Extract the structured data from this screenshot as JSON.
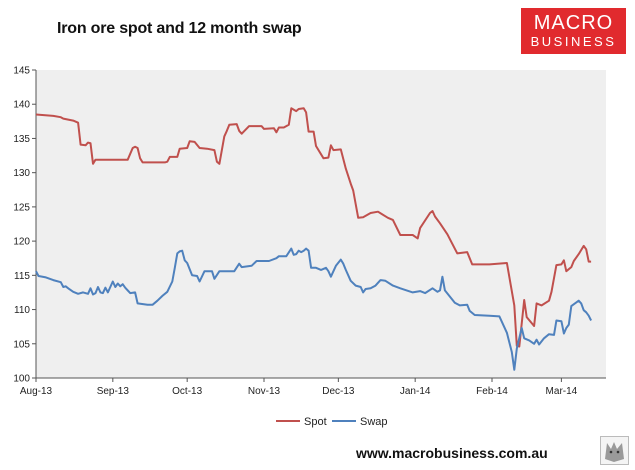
{
  "brand": {
    "logo_line1": "MACRO",
    "logo_line2": "BUSINESS",
    "website": "www.macrobusiness.com.au",
    "logo_color": "#e12a2e"
  },
  "chart_data": {
    "type": "line",
    "title": "Iron ore spot and 12 month swap",
    "xlabel": "",
    "ylabel": "",
    "ylim": [
      100,
      145
    ],
    "yticks": [
      100,
      105,
      110,
      115,
      120,
      125,
      130,
      135,
      140,
      145
    ],
    "x_tick_labels": [
      "Aug-13",
      "Sep-13",
      "Oct-13",
      "Nov-13",
      "Dec-13",
      "Jan-14",
      "Feb-14",
      "Mar-14"
    ],
    "x_tick_dates": [
      "2013-08-01",
      "2013-09-01",
      "2013-10-01",
      "2013-11-01",
      "2013-12-01",
      "2014-01-01",
      "2014-02-01",
      "2014-03-01"
    ],
    "xlim": [
      "2013-08-01",
      "2014-03-19"
    ],
    "grid": false,
    "plot_background": "#efefef",
    "legend_position": "bottom",
    "series": [
      {
        "name": "Spot",
        "color": "#c0504d",
        "points": [
          [
            "2013-08-01",
            138.5
          ],
          [
            "2013-08-08",
            138.3
          ],
          [
            "2013-08-11",
            138.1
          ],
          [
            "2013-08-12",
            137.9
          ],
          [
            "2013-08-16",
            137.6
          ],
          [
            "2013-08-18",
            137.3
          ],
          [
            "2013-08-19",
            134.1
          ],
          [
            "2013-08-21",
            134.0
          ],
          [
            "2013-08-22",
            134.4
          ],
          [
            "2013-08-23",
            134.3
          ],
          [
            "2013-08-24",
            131.3
          ],
          [
            "2013-08-25",
            131.9
          ],
          [
            "2013-08-30",
            131.9
          ],
          [
            "2013-09-05",
            131.9
          ],
          [
            "2013-09-07",
            131.9
          ],
          [
            "2013-09-09",
            133.6
          ],
          [
            "2013-09-10",
            133.8
          ],
          [
            "2013-09-11",
            133.6
          ],
          [
            "2013-09-12",
            132.1
          ],
          [
            "2013-09-13",
            131.5
          ],
          [
            "2013-09-18",
            131.5
          ],
          [
            "2013-09-22",
            131.5
          ],
          [
            "2013-09-23",
            131.6
          ],
          [
            "2013-09-24",
            132.3
          ],
          [
            "2013-09-27",
            132.3
          ],
          [
            "2013-09-28",
            133.5
          ],
          [
            "2013-10-01",
            133.6
          ],
          [
            "2013-10-02",
            134.6
          ],
          [
            "2013-10-04",
            134.5
          ],
          [
            "2013-10-06",
            133.6
          ],
          [
            "2013-10-09",
            133.5
          ],
          [
            "2013-10-12",
            133.3
          ],
          [
            "2013-10-13",
            131.6
          ],
          [
            "2013-10-14",
            131.3
          ],
          [
            "2013-10-16",
            135.3
          ],
          [
            "2013-10-17",
            136.1
          ],
          [
            "2013-10-18",
            137.0
          ],
          [
            "2013-10-21",
            137.1
          ],
          [
            "2013-10-22",
            136.1
          ],
          [
            "2013-10-23",
            135.7
          ],
          [
            "2013-10-26",
            136.8
          ],
          [
            "2013-10-28",
            136.8
          ],
          [
            "2013-10-31",
            136.8
          ],
          [
            "2013-11-01",
            136.4
          ],
          [
            "2013-11-05",
            136.5
          ],
          [
            "2013-11-06",
            135.9
          ],
          [
            "2013-11-07",
            136.6
          ],
          [
            "2013-11-09",
            136.6
          ],
          [
            "2013-11-11",
            137.0
          ],
          [
            "2013-11-12",
            139.4
          ],
          [
            "2013-11-14",
            139.0
          ],
          [
            "2013-11-15",
            139.3
          ],
          [
            "2013-11-17",
            139.4
          ],
          [
            "2013-11-18",
            138.8
          ],
          [
            "2013-11-19",
            136.0
          ],
          [
            "2013-11-21",
            136.0
          ],
          [
            "2013-11-22",
            133.9
          ],
          [
            "2013-11-25",
            132.1
          ],
          [
            "2013-11-27",
            132.2
          ],
          [
            "2013-11-28",
            134.0
          ],
          [
            "2013-11-29",
            133.3
          ],
          [
            "2013-12-02",
            133.4
          ],
          [
            "2013-12-04",
            130.6
          ],
          [
            "2013-12-06",
            128.4
          ],
          [
            "2013-12-07",
            127.4
          ],
          [
            "2013-12-09",
            123.4
          ],
          [
            "2013-12-11",
            123.5
          ],
          [
            "2013-12-14",
            124.1
          ],
          [
            "2013-12-17",
            124.3
          ],
          [
            "2013-12-21",
            123.4
          ],
          [
            "2013-12-23",
            123.1
          ],
          [
            "2013-12-26",
            120.9
          ],
          [
            "2013-12-31",
            120.9
          ],
          [
            "2014-01-02",
            120.4
          ],
          [
            "2014-01-03",
            121.9
          ],
          [
            "2014-01-07",
            124.1
          ],
          [
            "2014-01-08",
            124.4
          ],
          [
            "2014-01-09",
            123.6
          ],
          [
            "2014-01-11",
            122.6
          ],
          [
            "2014-01-14",
            121.0
          ],
          [
            "2014-01-16",
            119.6
          ],
          [
            "2014-01-18",
            118.2
          ],
          [
            "2014-01-22",
            118.4
          ],
          [
            "2014-01-24",
            116.6
          ],
          [
            "2014-01-31",
            116.6
          ],
          [
            "2014-02-07",
            116.8
          ],
          [
            "2014-02-10",
            110.6
          ],
          [
            "2014-02-11",
            104.7
          ],
          [
            "2014-02-12",
            104.6
          ],
          [
            "2014-02-14",
            111.4
          ],
          [
            "2014-02-15",
            108.9
          ],
          [
            "2014-02-18",
            107.6
          ],
          [
            "2014-02-19",
            110.9
          ],
          [
            "2014-02-21",
            110.6
          ],
          [
            "2014-02-24",
            111.3
          ],
          [
            "2014-02-25",
            112.6
          ],
          [
            "2014-02-27",
            116.5
          ],
          [
            "2014-03-01",
            116.6
          ],
          [
            "2014-03-02",
            117.2
          ],
          [
            "2014-03-03",
            115.6
          ],
          [
            "2014-03-05",
            116.2
          ],
          [
            "2014-03-06",
            117.1
          ],
          [
            "2014-03-08",
            118.1
          ],
          [
            "2014-03-10",
            119.3
          ],
          [
            "2014-03-11",
            118.8
          ],
          [
            "2014-03-12",
            117.0
          ],
          [
            "2014-03-13",
            117.0
          ]
        ]
      },
      {
        "name": "Swap",
        "color": "#4f81bd",
        "points": [
          [
            "2013-08-01",
            115.6
          ],
          [
            "2013-08-02",
            114.9
          ],
          [
            "2013-08-05",
            114.7
          ],
          [
            "2013-08-08",
            114.3
          ],
          [
            "2013-08-11",
            114.0
          ],
          [
            "2013-08-12",
            113.3
          ],
          [
            "2013-08-13",
            113.4
          ],
          [
            "2013-08-14",
            113.1
          ],
          [
            "2013-08-16",
            112.6
          ],
          [
            "2013-08-18",
            112.3
          ],
          [
            "2013-08-20",
            112.5
          ],
          [
            "2013-08-22",
            112.3
          ],
          [
            "2013-08-23",
            113.1
          ],
          [
            "2013-08-24",
            112.2
          ],
          [
            "2013-08-25",
            112.4
          ],
          [
            "2013-08-26",
            113.3
          ],
          [
            "2013-08-27",
            112.5
          ],
          [
            "2013-08-28",
            112.4
          ],
          [
            "2013-08-29",
            113.2
          ],
          [
            "2013-08-30",
            112.5
          ],
          [
            "2013-09-01",
            114.1
          ],
          [
            "2013-09-02",
            113.3
          ],
          [
            "2013-09-03",
            113.8
          ],
          [
            "2013-09-04",
            113.4
          ],
          [
            "2013-09-05",
            113.7
          ],
          [
            "2013-09-06",
            113.2
          ],
          [
            "2013-09-08",
            112.4
          ],
          [
            "2013-09-10",
            112.5
          ],
          [
            "2013-09-11",
            110.9
          ],
          [
            "2013-09-15",
            110.7
          ],
          [
            "2013-09-17",
            110.7
          ],
          [
            "2013-09-19",
            111.3
          ],
          [
            "2013-09-21",
            112.0
          ],
          [
            "2013-09-23",
            112.6
          ],
          [
            "2013-09-25",
            114.1
          ],
          [
            "2013-09-26",
            116.1
          ],
          [
            "2013-09-27",
            118.2
          ],
          [
            "2013-09-28",
            118.5
          ],
          [
            "2013-09-29",
            118.6
          ],
          [
            "2013-09-30",
            117.2
          ],
          [
            "2013-10-01",
            116.8
          ],
          [
            "2013-10-03",
            115.0
          ],
          [
            "2013-10-05",
            114.9
          ],
          [
            "2013-10-06",
            114.1
          ],
          [
            "2013-10-08",
            115.6
          ],
          [
            "2013-10-11",
            115.6
          ],
          [
            "2013-10-12",
            114.5
          ],
          [
            "2013-10-14",
            115.6
          ],
          [
            "2013-10-20",
            115.6
          ],
          [
            "2013-10-22",
            116.7
          ],
          [
            "2013-10-23",
            116.2
          ],
          [
            "2013-10-27",
            116.4
          ],
          [
            "2013-10-29",
            117.1
          ],
          [
            "2013-10-31",
            117.1
          ],
          [
            "2013-11-03",
            117.1
          ],
          [
            "2013-11-06",
            117.5
          ],
          [
            "2013-11-07",
            117.8
          ],
          [
            "2013-11-10",
            117.8
          ],
          [
            "2013-11-12",
            118.9
          ],
          [
            "2013-11-13",
            118.0
          ],
          [
            "2013-11-14",
            118.1
          ],
          [
            "2013-11-15",
            118.6
          ],
          [
            "2013-11-16",
            118.4
          ],
          [
            "2013-11-17",
            118.6
          ],
          [
            "2013-11-18",
            118.9
          ],
          [
            "2013-11-19",
            118.6
          ],
          [
            "2013-11-20",
            116.1
          ],
          [
            "2013-11-22",
            116.1
          ],
          [
            "2013-11-24",
            115.8
          ],
          [
            "2013-11-26",
            116.1
          ],
          [
            "2013-11-27",
            115.6
          ],
          [
            "2013-11-28",
            114.8
          ],
          [
            "2013-11-30",
            116.4
          ],
          [
            "2013-12-02",
            117.3
          ],
          [
            "2013-12-03",
            116.7
          ],
          [
            "2013-12-04",
            115.8
          ],
          [
            "2013-12-06",
            114.2
          ],
          [
            "2013-12-08",
            113.5
          ],
          [
            "2013-12-10",
            113.3
          ],
          [
            "2013-12-11",
            112.5
          ],
          [
            "2013-12-12",
            113.0
          ],
          [
            "2013-12-14",
            113.1
          ],
          [
            "2013-12-16",
            113.5
          ],
          [
            "2013-12-18",
            114.3
          ],
          [
            "2013-12-20",
            114.2
          ],
          [
            "2013-12-23",
            113.5
          ],
          [
            "2013-12-26",
            113.1
          ],
          [
            "2013-12-31",
            112.5
          ],
          [
            "2014-01-03",
            112.7
          ],
          [
            "2014-01-05",
            112.4
          ],
          [
            "2014-01-08",
            113.1
          ],
          [
            "2014-01-10",
            112.6
          ],
          [
            "2014-01-11",
            112.8
          ],
          [
            "2014-01-12",
            114.8
          ],
          [
            "2014-01-13",
            112.8
          ],
          [
            "2014-01-15",
            111.9
          ],
          [
            "2014-01-17",
            111.0
          ],
          [
            "2014-01-19",
            110.6
          ],
          [
            "2014-01-22",
            110.7
          ],
          [
            "2014-01-23",
            109.8
          ],
          [
            "2014-01-25",
            109.2
          ],
          [
            "2014-01-31",
            109.1
          ],
          [
            "2014-02-04",
            109.0
          ],
          [
            "2014-02-07",
            106.6
          ],
          [
            "2014-02-09",
            103.8
          ],
          [
            "2014-02-10",
            101.2
          ],
          [
            "2014-02-11",
            104.3
          ],
          [
            "2014-02-13",
            107.3
          ],
          [
            "2014-02-14",
            105.8
          ],
          [
            "2014-02-16",
            105.5
          ],
          [
            "2014-02-18",
            105.0
          ],
          [
            "2014-02-19",
            105.6
          ],
          [
            "2014-02-20",
            104.9
          ],
          [
            "2014-02-22",
            105.8
          ],
          [
            "2014-02-24",
            106.4
          ],
          [
            "2014-02-26",
            106.3
          ],
          [
            "2014-02-27",
            108.4
          ],
          [
            "2014-03-01",
            108.3
          ],
          [
            "2014-03-02",
            106.5
          ],
          [
            "2014-03-03",
            107.3
          ],
          [
            "2014-03-04",
            107.8
          ],
          [
            "2014-03-05",
            110.5
          ],
          [
            "2014-03-08",
            111.3
          ],
          [
            "2014-03-09",
            110.9
          ],
          [
            "2014-03-10",
            109.9
          ],
          [
            "2014-03-11",
            109.6
          ],
          [
            "2014-03-12",
            109.1
          ],
          [
            "2014-03-13",
            108.4
          ]
        ]
      }
    ]
  }
}
